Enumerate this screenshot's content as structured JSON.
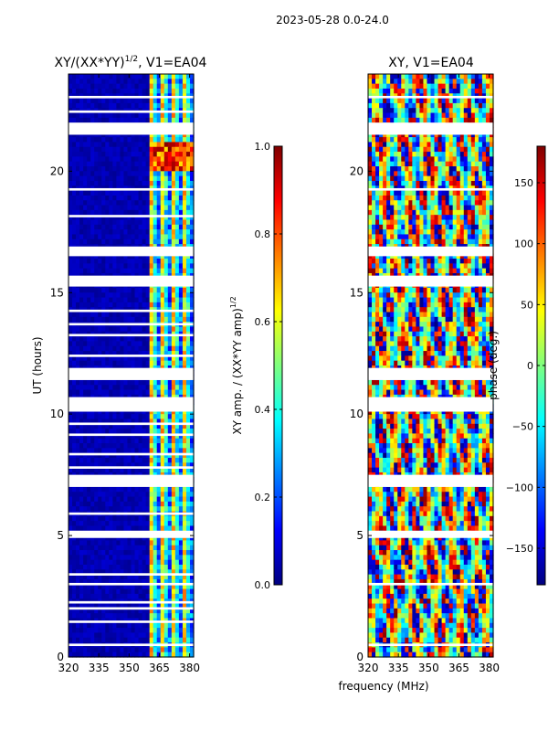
{
  "suptitle": "2023-05-28 0.0-24.0",
  "shared_xlabel": "frequency (MHz)",
  "colors": {
    "jet": [
      "#00007f",
      "#0000ff",
      "#007fff",
      "#00ffff",
      "#7fff7f",
      "#ffff00",
      "#ff7f00",
      "#ff0000",
      "#7f0000"
    ],
    "gap": "#ffffff"
  },
  "chart_data": [
    {
      "type": "heatmap",
      "title_main": "XY/(XX*YY)",
      "title_sup": "1/2",
      "title_rest": ", V1=EA04",
      "xlabel": "",
      "ylabel": "UT (hours)",
      "xlim": [
        320,
        382
      ],
      "ylim": [
        0,
        24
      ],
      "xticks": [
        "320",
        "335",
        "350",
        "365",
        "380"
      ],
      "xtick_values": [
        320,
        335,
        350,
        365,
        380
      ],
      "yticks": [
        "0",
        "5",
        "10",
        "15",
        "20"
      ],
      "ytick_values": [
        0,
        5,
        10,
        15,
        20
      ],
      "colorbar": {
        "label_main": "XY amp. / (XX*YY amp)",
        "label_sup": "1/2",
        "range": [
          0.0,
          1.0
        ],
        "ticks": [
          "0.0",
          "0.2",
          "0.4",
          "0.6",
          "0.8",
          "1.0"
        ],
        "tick_values": [
          0.0,
          0.2,
          0.4,
          0.6,
          0.8,
          1.0
        ]
      },
      "mode": "amplitude",
      "active_band_mhz": [
        360,
        382
      ],
      "flagged_ut_hours": [
        [
          0.45,
          0.55
        ],
        [
          1.4,
          1.5
        ],
        [
          1.95,
          2.05
        ],
        [
          2.2,
          2.3
        ],
        [
          2.95,
          3.05
        ],
        [
          3.35,
          3.45
        ],
        [
          4.9,
          5.2
        ],
        [
          5.85,
          5.95
        ],
        [
          7.0,
          7.5
        ],
        [
          7.75,
          7.85
        ],
        [
          8.3,
          8.4
        ],
        [
          9.1,
          9.2
        ],
        [
          9.55,
          9.65
        ],
        [
          10.1,
          10.7
        ],
        [
          11.4,
          11.9
        ],
        [
          12.35,
          12.45
        ],
        [
          13.2,
          13.3
        ],
        [
          13.65,
          13.75
        ],
        [
          14.2,
          14.3
        ],
        [
          15.25,
          15.7
        ],
        [
          16.5,
          16.9
        ],
        [
          18.1,
          18.2
        ],
        [
          19.2,
          19.3
        ],
        [
          21.5,
          22.0
        ],
        [
          22.4,
          22.5
        ],
        [
          23.0,
          23.1
        ]
      ]
    },
    {
      "type": "heatmap",
      "title_main": "XY, V1=EA04",
      "xlabel": "frequency (MHz)",
      "ylabel": "",
      "xlim": [
        320,
        382
      ],
      "ylim": [
        0,
        24
      ],
      "xticks": [
        "320",
        "335",
        "350",
        "365",
        "380"
      ],
      "xtick_values": [
        320,
        335,
        350,
        365,
        380
      ],
      "yticks": [
        "0",
        "5",
        "10",
        "15",
        "20"
      ],
      "ytick_values": [
        0,
        5,
        10,
        15,
        20
      ],
      "colorbar": {
        "label": "phase (deg.)",
        "range": [
          -180,
          180
        ],
        "ticks": [
          "−150",
          "−100",
          "−50",
          "0",
          "50",
          "100",
          "150"
        ],
        "tick_values": [
          -150,
          -100,
          -50,
          0,
          50,
          100,
          150
        ]
      },
      "mode": "phase",
      "flagged_ut_hours": [
        [
          0.45,
          0.55
        ],
        [
          2.95,
          3.05
        ],
        [
          4.9,
          5.2
        ],
        [
          7.0,
          7.5
        ],
        [
          10.1,
          10.7
        ],
        [
          11.4,
          11.9
        ],
        [
          15.25,
          15.7
        ],
        [
          16.5,
          16.9
        ],
        [
          19.2,
          19.3
        ],
        [
          21.5,
          22.0
        ],
        [
          23.0,
          23.1
        ]
      ]
    }
  ]
}
